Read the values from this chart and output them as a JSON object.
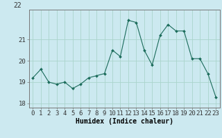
{
  "x": [
    0,
    1,
    2,
    3,
    4,
    5,
    6,
    7,
    8,
    9,
    10,
    11,
    12,
    13,
    14,
    15,
    16,
    17,
    18,
    19,
    20,
    21,
    22,
    23
  ],
  "y": [
    19.2,
    19.6,
    19.0,
    18.9,
    19.0,
    18.7,
    18.9,
    19.2,
    19.3,
    19.4,
    20.5,
    20.2,
    21.9,
    21.8,
    20.5,
    19.8,
    21.2,
    21.7,
    21.4,
    21.4,
    20.1,
    20.1,
    19.4,
    18.3
  ],
  "line_color": "#1a6b5a",
  "marker": "D",
  "marker_size": 2.0,
  "bg_color": "#cce9f0",
  "grid_color": "#aad4cc",
  "xlabel": "Humidex (Indice chaleur)",
  "ylim": [
    17.8,
    22.4
  ],
  "xlim": [
    -0.5,
    23.5
  ],
  "yticks": [
    18,
    19,
    20,
    21
  ],
  "xlabel_fontsize": 7,
  "tick_fontsize": 6.5,
  "title_text": "22",
  "title_fontsize": 7
}
